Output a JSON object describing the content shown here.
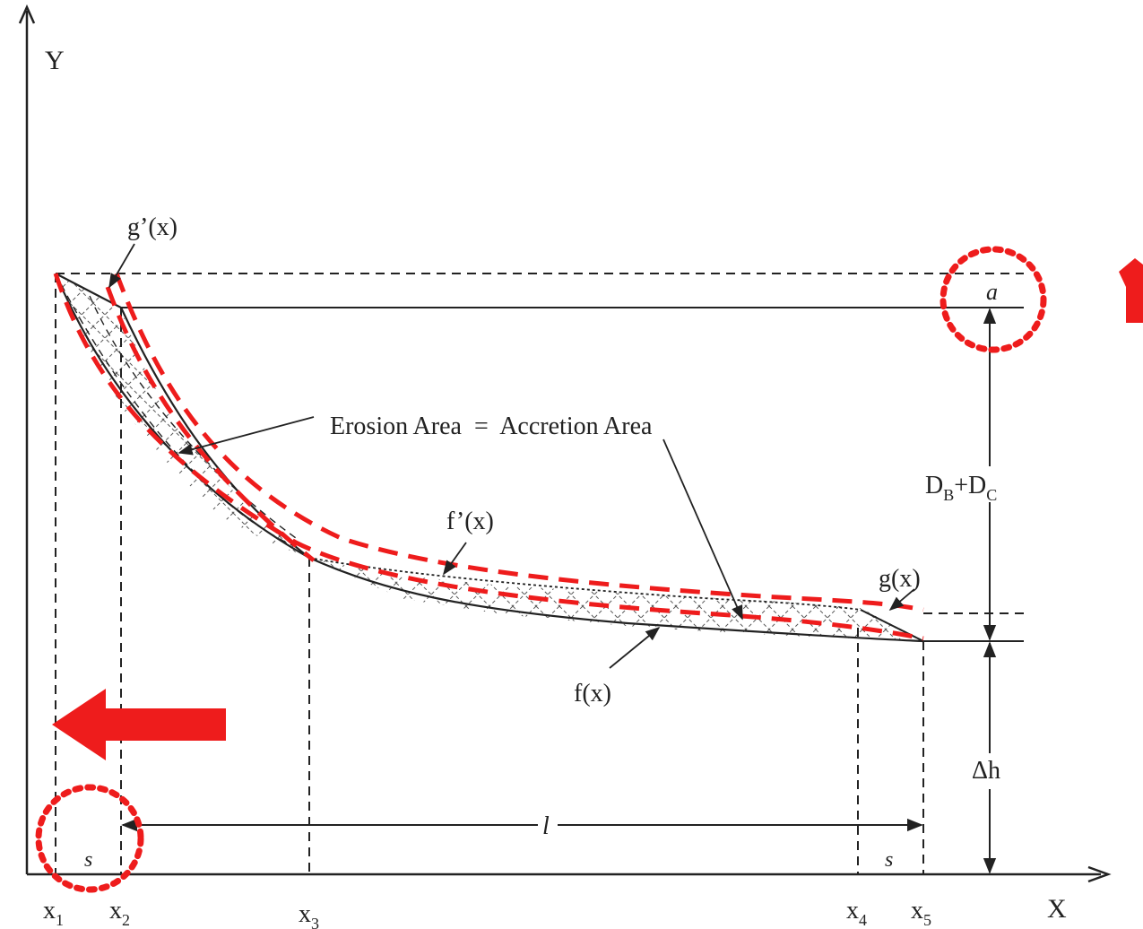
{
  "axes": {
    "x_label": "X",
    "y_label": "Y"
  },
  "curves": {
    "g_prime": "g’(x)",
    "f_prime": "f’(x)",
    "g": "g(x)",
    "f": "f(x)"
  },
  "annotations": {
    "erosion_accretion": "Erosion Area  =  Accretion Area",
    "a": "a",
    "db_dc": {
      "base": "D",
      "sub1": "B",
      "plus": "+D",
      "sub2": "C"
    },
    "delta_h": "Δh",
    "l": "l",
    "s_left": "s",
    "s_right": "s"
  },
  "ticks": [
    {
      "base": "x",
      "sub": "1"
    },
    {
      "base": "x",
      "sub": "2"
    },
    {
      "base": "x",
      "sub": "3"
    },
    {
      "base": "x",
      "sub": "4"
    },
    {
      "base": "x",
      "sub": "5"
    }
  ],
  "colors": {
    "ink": "#222222",
    "highlight": "#ee1c1c"
  },
  "highlights": [
    {
      "name": "up-arrow-icon"
    },
    {
      "name": "left-arrow-icon"
    },
    {
      "name": "dotted-circle-a"
    },
    {
      "name": "dotted-circle-s"
    }
  ]
}
